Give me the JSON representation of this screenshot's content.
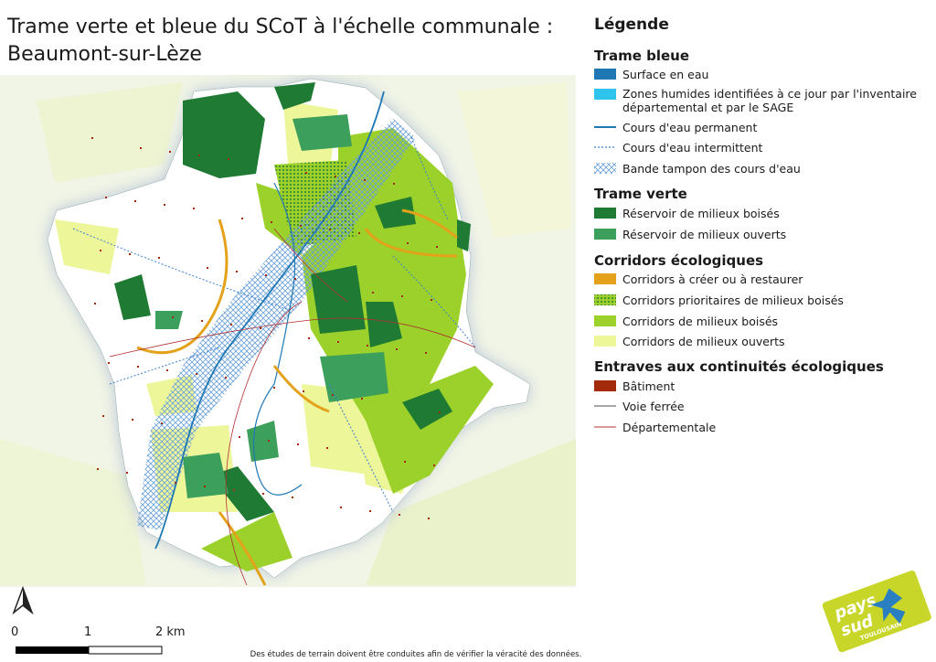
{
  "title": {
    "lines": [
      "Trame verte et bleue du SCoT à l'échelle communale :",
      "Beaumont-sur-Lèze"
    ]
  },
  "legend": {
    "title": "Légende",
    "sections": [
      {
        "heading": "Trame bleue",
        "items": [
          "Surface en eau",
          [
            "Zones humides identifiées à ce jour par l'inventaire",
            "départemental et par le SAGE"
          ],
          "Cours d'eau permanent",
          "Cours d'eau intermittent",
          "Bande tampon des cours d'eau"
        ]
      },
      {
        "heading": "Trame verte",
        "items": [
          "Réservoir de milieux boisés",
          "Réservoir de milieux ouverts"
        ]
      },
      {
        "heading": "Corridors écologiques",
        "items": [
          "Corridors à créer ou à restaurer",
          "Corridors prioritaires de milieux boisés",
          "Corridors de milieux boisés",
          "Corridors de milieux ouverts"
        ]
      },
      {
        "heading": "Entraves aux continuités écologiques",
        "items": [
          "Bâtiment",
          "Voie ferrée",
          "Départementale"
        ]
      }
    ]
  },
  "scale": {
    "labels": [
      "0",
      "1",
      "2 km"
    ]
  },
  "note": "Des études de terrain doivent être conduites afin de vérifier la véracité des données.",
  "logo": {
    "lines": [
      "pays",
      "sud",
      "TOULOUSAIN"
    ]
  }
}
